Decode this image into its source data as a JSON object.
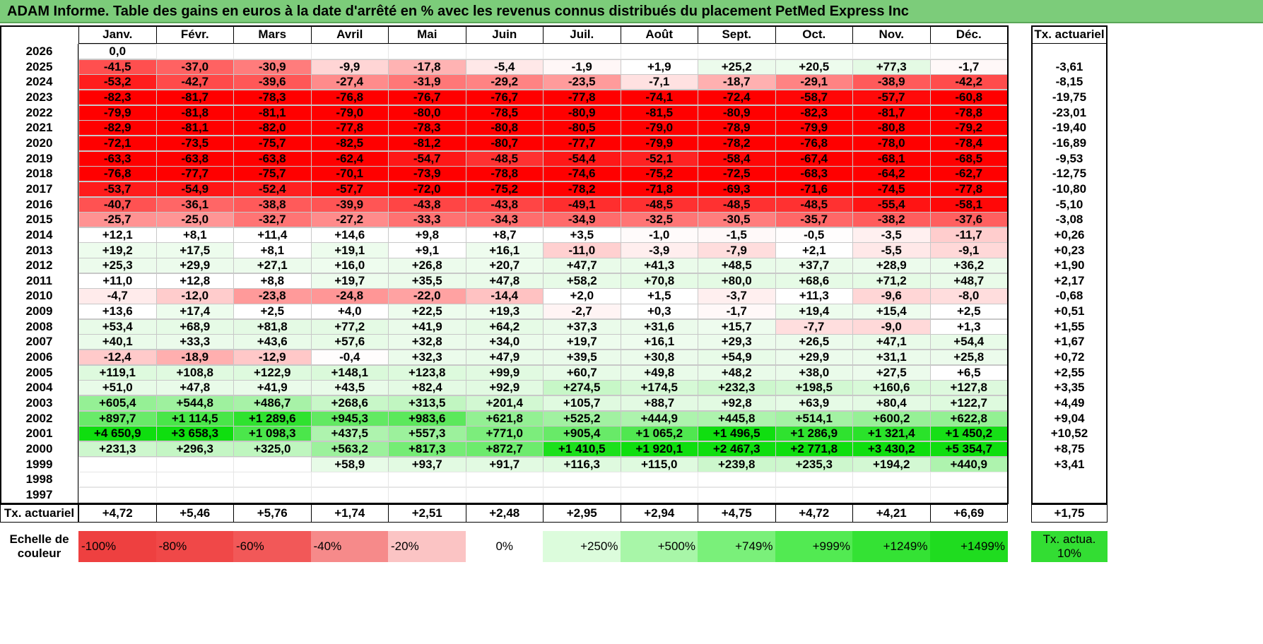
{
  "title": "ADAM Informe. Table des gains en euros à la date d'arrêté en % avec les revenus connus distribués du placement PetMed Express Inc",
  "chart_data": {
    "type": "table",
    "months": [
      "Janv.",
      "Févr.",
      "Mars",
      "Avril",
      "Mai",
      "Juin",
      "Juil.",
      "Août",
      "Sept.",
      "Oct.",
      "Nov.",
      "Déc."
    ],
    "actuarial_header": "Tx. actuariel",
    "rows": [
      {
        "year": "2026",
        "values": [
          "0,0",
          "",
          "",
          "",
          "",
          "",
          "",
          "",
          "",
          "",
          "",
          ""
        ],
        "rate": ""
      },
      {
        "year": "2025",
        "values": [
          "-41,5",
          "-37,0",
          "-30,9",
          "-9,9",
          "-17,8",
          "-5,4",
          "-1,9",
          "+1,9",
          "+25,2",
          "+20,5",
          "+77,3",
          "-1,7"
        ],
        "rate": "-3,61"
      },
      {
        "year": "2024",
        "values": [
          "-53,2",
          "-42,7",
          "-39,6",
          "-27,4",
          "-31,9",
          "-29,2",
          "-23,5",
          "-7,1",
          "-18,7",
          "-29,1",
          "-38,9",
          "-42,2"
        ],
        "rate": "-8,15"
      },
      {
        "year": "2023",
        "values": [
          "-82,3",
          "-81,7",
          "-78,3",
          "-76,8",
          "-76,7",
          "-76,7",
          "-77,8",
          "-74,1",
          "-72,4",
          "-58,7",
          "-57,7",
          "-60,8"
        ],
        "rate": "-19,75"
      },
      {
        "year": "2022",
        "values": [
          "-79,9",
          "-81,8",
          "-81,1",
          "-79,0",
          "-80,0",
          "-78,5",
          "-80,9",
          "-81,5",
          "-80,9",
          "-82,3",
          "-81,7",
          "-78,8"
        ],
        "rate": "-23,01"
      },
      {
        "year": "2021",
        "values": [
          "-82,9",
          "-81,1",
          "-82,0",
          "-77,8",
          "-78,3",
          "-80,8",
          "-80,5",
          "-79,0",
          "-78,9",
          "-79,9",
          "-80,8",
          "-79,2"
        ],
        "rate": "-19,40"
      },
      {
        "year": "2020",
        "values": [
          "-72,1",
          "-73,5",
          "-75,7",
          "-82,5",
          "-81,2",
          "-80,7",
          "-77,7",
          "-79,9",
          "-78,2",
          "-76,8",
          "-78,0",
          "-78,4"
        ],
        "rate": "-16,89"
      },
      {
        "year": "2019",
        "values": [
          "-63,3",
          "-63,8",
          "-63,8",
          "-62,4",
          "-54,7",
          "-48,5",
          "-54,4",
          "-52,1",
          "-58,4",
          "-67,4",
          "-68,1",
          "-68,5"
        ],
        "rate": "-9,53"
      },
      {
        "year": "2018",
        "values": [
          "-76,8",
          "-77,7",
          "-75,7",
          "-70,1",
          "-73,9",
          "-78,8",
          "-74,6",
          "-75,2",
          "-72,5",
          "-68,3",
          "-64,2",
          "-62,7"
        ],
        "rate": "-12,75"
      },
      {
        "year": "2017",
        "values": [
          "-53,7",
          "-54,9",
          "-52,4",
          "-57,7",
          "-72,0",
          "-75,2",
          "-78,2",
          "-71,8",
          "-69,3",
          "-71,6",
          "-74,5",
          "-77,8"
        ],
        "rate": "-10,80"
      },
      {
        "year": "2016",
        "values": [
          "-40,7",
          "-36,1",
          "-38,8",
          "-39,9",
          "-43,8",
          "-43,8",
          "-49,1",
          "-48,5",
          "-48,5",
          "-48,5",
          "-55,4",
          "-58,1"
        ],
        "rate": "-5,10"
      },
      {
        "year": "2015",
        "values": [
          "-25,7",
          "-25,0",
          "-32,7",
          "-27,2",
          "-33,3",
          "-34,3",
          "-34,9",
          "-32,5",
          "-30,5",
          "-35,7",
          "-38,2",
          "-37,6"
        ],
        "rate": "-3,08"
      },
      {
        "year": "2014",
        "values": [
          "+12,1",
          "+8,1",
          "+11,4",
          "+14,6",
          "+9,8",
          "+8,7",
          "+3,5",
          "-1,0",
          "-1,5",
          "-0,5",
          "-3,5",
          "-11,7"
        ],
        "rate": "+0,26"
      },
      {
        "year": "2013",
        "values": [
          "+19,2",
          "+17,5",
          "+8,1",
          "+19,1",
          "+9,1",
          "+16,1",
          "-11,0",
          "-3,9",
          "-7,9",
          "+2,1",
          "-5,5",
          "-9,1"
        ],
        "rate": "+0,23"
      },
      {
        "year": "2012",
        "values": [
          "+25,3",
          "+29,9",
          "+27,1",
          "+16,0",
          "+26,8",
          "+20,7",
          "+47,7",
          "+41,3",
          "+48,5",
          "+37,7",
          "+28,9",
          "+36,2"
        ],
        "rate": "+1,90"
      },
      {
        "year": "2011",
        "values": [
          "+11,0",
          "+12,8",
          "+8,8",
          "+19,7",
          "+35,5",
          "+47,8",
          "+58,2",
          "+70,8",
          "+80,0",
          "+68,6",
          "+71,2",
          "+48,7"
        ],
        "rate": "+2,17"
      },
      {
        "year": "2010",
        "values": [
          "-4,7",
          "-12,0",
          "-23,8",
          "-24,8",
          "-22,0",
          "-14,4",
          "+2,0",
          "+1,5",
          "-3,7",
          "+11,3",
          "-9,6",
          "-8,0"
        ],
        "rate": "-0,68"
      },
      {
        "year": "2009",
        "values": [
          "+13,6",
          "+17,4",
          "+2,5",
          "+4,0",
          "+22,5",
          "+19,3",
          "-2,7",
          "+0,3",
          "-1,7",
          "+19,4",
          "+15,4",
          "+2,5"
        ],
        "rate": "+0,51"
      },
      {
        "year": "2008",
        "values": [
          "+53,4",
          "+68,9",
          "+81,8",
          "+77,2",
          "+41,9",
          "+64,2",
          "+37,3",
          "+31,6",
          "+15,7",
          "-7,7",
          "-9,0",
          "+1,3"
        ],
        "rate": "+1,55"
      },
      {
        "year": "2007",
        "values": [
          "+40,1",
          "+33,3",
          "+43,6",
          "+57,6",
          "+32,8",
          "+34,0",
          "+19,7",
          "+16,1",
          "+29,3",
          "+26,5",
          "+47,1",
          "+54,4"
        ],
        "rate": "+1,67"
      },
      {
        "year": "2006",
        "values": [
          "-12,4",
          "-18,9",
          "-12,9",
          "-0,4",
          "+32,3",
          "+47,9",
          "+39,5",
          "+30,8",
          "+54,9",
          "+29,9",
          "+31,1",
          "+25,8"
        ],
        "rate": "+0,72"
      },
      {
        "year": "2005",
        "values": [
          "+119,1",
          "+108,8",
          "+122,9",
          "+148,1",
          "+123,8",
          "+99,9",
          "+60,7",
          "+49,8",
          "+48,2",
          "+38,0",
          "+27,5",
          "+6,5"
        ],
        "rate": "+2,55"
      },
      {
        "year": "2004",
        "values": [
          "+51,0",
          "+47,8",
          "+41,9",
          "+43,5",
          "+82,4",
          "+92,9",
          "+274,5",
          "+174,5",
          "+232,3",
          "+198,5",
          "+160,6",
          "+127,8"
        ],
        "rate": "+3,35"
      },
      {
        "year": "2003",
        "values": [
          "+605,4",
          "+544,8",
          "+486,7",
          "+268,6",
          "+313,5",
          "+201,4",
          "+105,7",
          "+88,7",
          "+92,8",
          "+63,9",
          "+80,4",
          "+122,7"
        ],
        "rate": "+4,49"
      },
      {
        "year": "2002",
        "values": [
          "+897,7",
          "+1 114,5",
          "+1 289,6",
          "+945,3",
          "+983,6",
          "+621,8",
          "+525,2",
          "+444,9",
          "+445,8",
          "+514,1",
          "+600,2",
          "+622,8"
        ],
        "rate": "+9,04"
      },
      {
        "year": "2001",
        "values": [
          "+4 650,9",
          "+3 658,3",
          "+1 098,3",
          "+437,5",
          "+557,3",
          "+771,0",
          "+905,4",
          "+1 065,2",
          "+1 496,5",
          "+1 286,9",
          "+1 321,4",
          "+1 450,2"
        ],
        "rate": "+10,52"
      },
      {
        "year": "2000",
        "values": [
          "+231,3",
          "+296,3",
          "+325,0",
          "+563,2",
          "+817,3",
          "+872,7",
          "+1 410,5",
          "+1 920,1",
          "+2 467,3",
          "+2 771,8",
          "+3 430,2",
          "+5 354,7"
        ],
        "rate": "+8,75"
      },
      {
        "year": "1999",
        "values": [
          "",
          "",
          "",
          "+58,9",
          "+93,7",
          "+91,7",
          "+116,3",
          "+115,0",
          "+239,8",
          "+235,3",
          "+194,2",
          "+440,9"
        ],
        "rate": "+3,41"
      },
      {
        "year": "1998",
        "values": [
          "",
          "",
          "",
          "",
          "",
          "",
          "",
          "",
          "",
          "",
          "",
          ""
        ],
        "rate": ""
      },
      {
        "year": "1997",
        "values": [
          "",
          "",
          "",
          "",
          "",
          "",
          "",
          "",
          "",
          "",
          "",
          ""
        ],
        "rate": ""
      }
    ],
    "footer": {
      "label": "Tx. actuariel",
      "values": [
        "+4,72",
        "+5,46",
        "+5,76",
        "+1,74",
        "+2,51",
        "+2,48",
        "+2,95",
        "+2,94",
        "+4,75",
        "+4,72",
        "+4,21",
        "+6,69"
      ],
      "rate": "+1,75"
    },
    "scale": {
      "label": "Echelle de couleur",
      "items": [
        {
          "text": "-100%",
          "color": "#ee4040",
          "align": "left"
        },
        {
          "text": "-80%",
          "color": "#f04848",
          "align": "left"
        },
        {
          "text": "-60%",
          "color": "#f25858",
          "align": "left"
        },
        {
          "text": "-40%",
          "color": "#f68a8a",
          "align": "left"
        },
        {
          "text": "-20%",
          "color": "#fbc4c4",
          "align": "left"
        },
        {
          "text": "0%",
          "color": "#ffffff",
          "align": "center"
        },
        {
          "text": "+250%",
          "color": "#dcfcdc",
          "align": "right"
        },
        {
          "text": "+500%",
          "color": "#a8f6a8",
          "align": "right"
        },
        {
          "text": "+749%",
          "color": "#7af07a",
          "align": "right"
        },
        {
          "text": "+999%",
          "color": "#52ea52",
          "align": "right"
        },
        {
          "text": "+1249%",
          "color": "#34e234",
          "align": "right"
        },
        {
          "text": "+1499%",
          "color": "#1fdc1f",
          "align": "right"
        }
      ],
      "actuarial_swatch": {
        "text": "Tx. actua. 10%",
        "color": "#33dd33"
      }
    }
  }
}
